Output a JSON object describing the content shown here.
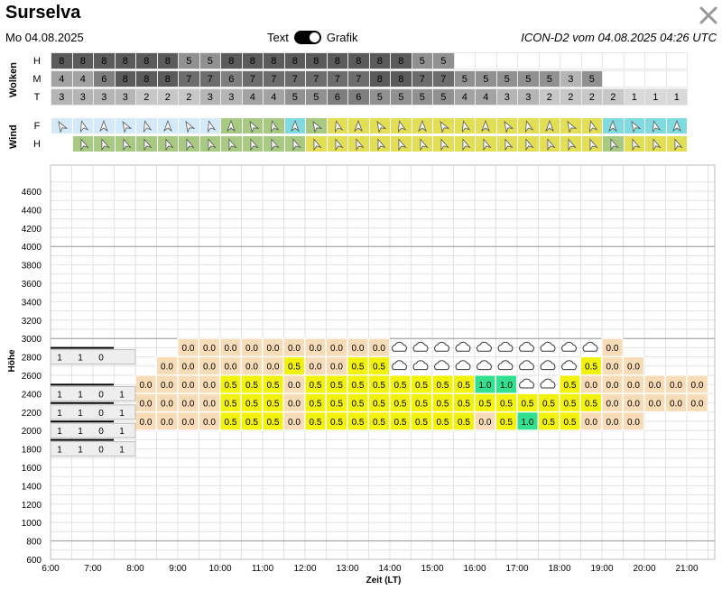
{
  "title": "Surselva",
  "date": "Mo 04.08.2025",
  "model_run": "ICON-D2 vom 04.08.2025 04:26 UTC",
  "view_toggle": {
    "left": "Text",
    "right": "Grafik",
    "selected": "Grafik"
  },
  "icons": {
    "close": "close-icon",
    "wind": "wind-arrow-icon",
    "cloud": "cloud-rain-icon"
  },
  "colors": {
    "thermal_weak": "#f7dcb7",
    "thermal_mid": "#f2f20d",
    "thermal_strong": "#33e090",
    "wind_calm": "#d5eaf8",
    "wind_light": "#e2de55",
    "wind_mod": "#a8c981",
    "wind_cyan": "#7fdbe0",
    "grid": "#dddddd"
  },
  "clouds": {
    "section_label": "Wolken",
    "rows": [
      {
        "label": "H",
        "values": [
          "8",
          "8",
          "8",
          "8",
          "8",
          "8",
          "5",
          "5",
          "8",
          "8",
          "8",
          "8",
          "8",
          "8",
          "8",
          "8",
          "8",
          "5",
          "5",
          "",
          "",
          "",
          "",
          "",
          "",
          "",
          "",
          "",
          "",
          ""
        ]
      },
      {
        "label": "M",
        "values": [
          "4",
          "4",
          "6",
          "8",
          "8",
          "8",
          "7",
          "7",
          "6",
          "7",
          "7",
          "7",
          "7",
          "7",
          "7",
          "8",
          "8",
          "7",
          "7",
          "5",
          "5",
          "5",
          "5",
          "5",
          "3",
          "5",
          "",
          "",
          "",
          ""
        ]
      },
      {
        "label": "T",
        "values": [
          "3",
          "3",
          "3",
          "3",
          "2",
          "2",
          "2",
          "3",
          "3",
          "4",
          "4",
          "5",
          "5",
          "6",
          "6",
          "5",
          "5",
          "5",
          "5",
          "4",
          "4",
          "3",
          "3",
          "2",
          "2",
          "2",
          "2",
          "1",
          "1",
          "1"
        ]
      }
    ]
  },
  "wind": {
    "section_label": "Wind",
    "rows": [
      {
        "label": "F",
        "colors": [
          "calm",
          "calm",
          "calm",
          "calm",
          "calm",
          "calm",
          "calm",
          "calm",
          "mod",
          "mod",
          "mod",
          "cyan",
          "mod",
          "light",
          "light",
          "light",
          "light",
          "light",
          "light",
          "light",
          "light",
          "light",
          "light",
          "light",
          "light",
          "light",
          "cyan",
          "cyan",
          "cyan",
          "cyan"
        ]
      },
      {
        "label": "H",
        "colors": [
          "none",
          "mod",
          "mod",
          "mod",
          "mod",
          "mod",
          "mod",
          "mod",
          "mod",
          "mod",
          "mod",
          "mod",
          "light",
          "light",
          "light",
          "light",
          "light",
          "light",
          "light",
          "light",
          "light",
          "light",
          "light",
          "light",
          "light",
          "light",
          "mod",
          "light",
          "light",
          "light"
        ]
      }
    ]
  },
  "chart": {
    "y_axis_label": "Höhe",
    "x_axis_label": "Zeit (LT)",
    "y_ticks": [
      "600",
      "800",
      "1000",
      "1200",
      "1400",
      "1600",
      "1800",
      "2000",
      "2200",
      "2400",
      "2600",
      "2800",
      "3000",
      "3200",
      "3400",
      "3600",
      "3800",
      "4000",
      "4200",
      "4400",
      "4600"
    ],
    "x_ticks": [
      "6:00",
      "7:00",
      "8:00",
      "9:00",
      "10:00",
      "11:00",
      "12:00",
      "13:00",
      "14:00",
      "15:00",
      "16:00",
      "17:00",
      "18:00",
      "19:00",
      "20:00",
      "21:00"
    ]
  },
  "chart_data": {
    "type": "heatmap",
    "xlabel": "Zeit (LT)",
    "ylabel": "Höhe",
    "x_range": [
      "6:00",
      "21:30"
    ],
    "y_range": [
      600,
      4700
    ],
    "description_of_values": "thermal lift values per half hour and altitude level",
    "cloud_base_stacks": [
      {
        "time": "6:00",
        "alt": 2800,
        "values": [
          "1",
          "1",
          "0",
          ""
        ]
      },
      {
        "time": "6:00",
        "alt": 2400,
        "values": [
          "1",
          "1",
          "0",
          "1"
        ]
      },
      {
        "time": "6:00",
        "alt": 2200,
        "values": [
          "1",
          "1",
          "0",
          "1"
        ]
      },
      {
        "time": "6:00",
        "alt": 2000,
        "values": [
          "1",
          "1",
          "0",
          "1"
        ]
      },
      {
        "time": "6:00",
        "alt": 1800,
        "values": [
          "1",
          "1",
          "0",
          "1"
        ]
      }
    ],
    "rows": [
      {
        "alt": 2900,
        "start": "9:00",
        "values": [
          "0.0",
          "0.0",
          "0.0",
          "0.0",
          "0.0",
          "0.0",
          "0.0",
          "0.0",
          "0.0",
          "0.0",
          "C",
          "C",
          "C",
          "C",
          "C",
          "C",
          "C",
          "C",
          "C",
          "C",
          "0.0"
        ]
      },
      {
        "alt": 2700,
        "start": "8:30",
        "values": [
          "0.0",
          "0.0",
          "0.0",
          "0.0",
          "0.0",
          "0.0",
          "0.5",
          "0.0",
          "0.0",
          "0.5",
          "0.5",
          "C",
          "C",
          "C",
          "C",
          "C",
          "C",
          "C",
          "C",
          "C",
          "0.5",
          "0.0",
          "0.0"
        ]
      },
      {
        "alt": 2500,
        "start": "8:00",
        "values": [
          "0.0",
          "0.0",
          "0.0",
          "0.0",
          "0.5",
          "0.5",
          "0.5",
          "0.0",
          "0.5",
          "0.5",
          "0.5",
          "0.5",
          "0.5",
          "0.5",
          "0.5",
          "0.5",
          "1.0",
          "1.0",
          "C",
          "C",
          "0.5",
          "0.0",
          "0.0",
          "0.0",
          "0.0",
          "0.0",
          "0.0"
        ]
      },
      {
        "alt": 2300,
        "start": "8:00",
        "values": [
          "0.0",
          "0.0",
          "0.0",
          "0.0",
          "0.5",
          "0.5",
          "0.5",
          "0.0",
          "0.5",
          "0.5",
          "0.5",
          "0.5",
          "0.5",
          "0.5",
          "0.5",
          "0.5",
          "0.5",
          "0.5",
          "0.5",
          "0.5",
          "0.5",
          "0.5",
          "0.0",
          "0.0",
          "0.0",
          "0.0",
          "0.0"
        ]
      },
      {
        "alt": 2100,
        "start": "8:00",
        "values": [
          "0.0",
          "0.0",
          "0.0",
          "0.0",
          "0.5",
          "0.5",
          "0.5",
          "0.0",
          "0.5",
          "0.5",
          "0.5",
          "0.5",
          "0.5",
          "0.5",
          "0.5",
          "0.5",
          "0.0",
          "0.5",
          "1.0",
          "0.5",
          "0.5",
          "0.0",
          "0.0",
          "0.0"
        ]
      }
    ]
  }
}
